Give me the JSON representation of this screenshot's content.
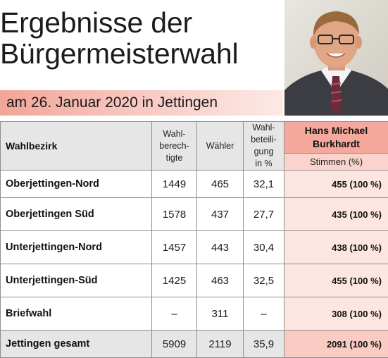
{
  "title": {
    "line1": "Ergebnisse der",
    "line2": "Bürgermeisterwahl"
  },
  "subtitle": "am 26. Januar 2020 in Jettingen",
  "colors": {
    "accent": "#f5a99c",
    "accent_light": "#fde6e1",
    "header_gray": "#e6e6e6"
  },
  "table": {
    "headers": {
      "district": "Wahlbezirk",
      "eligible": [
        "Wahl-",
        "berech-",
        "tigte"
      ],
      "voters": "Wähler",
      "turnout": [
        "Wahl-",
        "beteili-",
        "gung",
        "in %"
      ],
      "candidate": [
        "Hans Michael",
        "Burkhardt"
      ],
      "votes_unit": "Stimmen (%)"
    },
    "rows": [
      {
        "district": "Oberjettingen-Nord",
        "eligible": "1449",
        "voters": "465",
        "turnout": "32,1",
        "votes": "455 (100 %)"
      },
      {
        "district": "Oberjettingen Süd",
        "eligible": "1578",
        "voters": "437",
        "turnout": "27,7",
        "votes": "435 (100 %)"
      },
      {
        "district": "Unterjettingen-Nord",
        "eligible": "1457",
        "voters": "443",
        "turnout": "30,4",
        "votes": "438 (100 %)"
      },
      {
        "district": "Unterjettingen-Süd",
        "eligible": "1425",
        "voters": "463",
        "turnout": "32,5",
        "votes": "455 (100 %)"
      },
      {
        "district": "Briefwahl",
        "eligible": "–",
        "voters": "311",
        "turnout": "–",
        "votes": "308 (100 %)"
      },
      {
        "district": "Jettingen gesamt",
        "eligible": "5909",
        "voters": "2119",
        "turnout": "35,9",
        "votes": "2091 (100 %)"
      }
    ]
  }
}
